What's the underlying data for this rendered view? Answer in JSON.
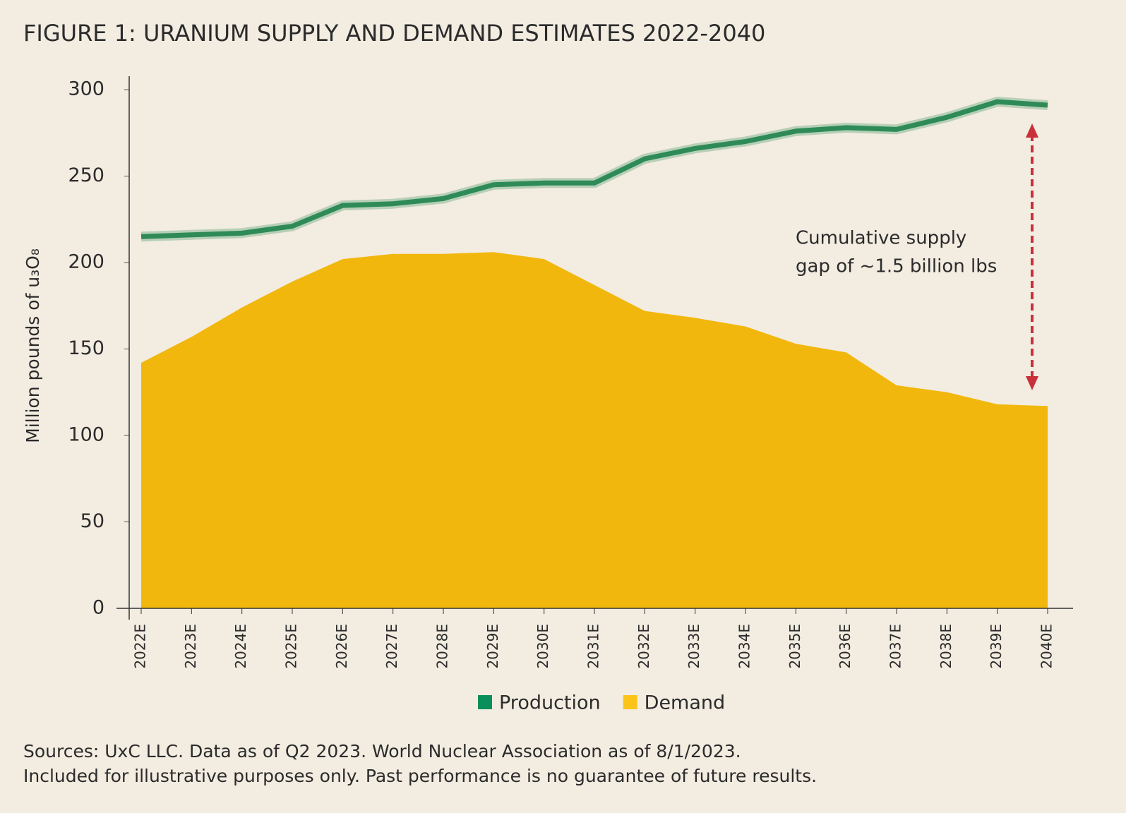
{
  "chart_data": {
    "type": "line-area",
    "title": "FIGURE 1: URANIUM SUPPLY AND DEMAND ESTIMATES 2022-2040",
    "y_label": "Million pounds of u₃O₈",
    "categories": [
      "2022E",
      "2023E",
      "2024E",
      "2025E",
      "2026E",
      "2027E",
      "2028E",
      "2029E",
      "2030E",
      "2031E",
      "2032E",
      "2033E",
      "2034E",
      "2035E",
      "2036E",
      "2037E",
      "2038E",
      "2039E",
      "2040E"
    ],
    "series": [
      {
        "name": "Production",
        "color": "#2e8b57",
        "legend_color": "#0a8f5a",
        "style": "line",
        "values": [
          215,
          216,
          217,
          221,
          233,
          234,
          237,
          245,
          246,
          246,
          260,
          266,
          270,
          276,
          278,
          277,
          284,
          293,
          291
        ]
      },
      {
        "name": "Demand",
        "color": "#f1b70c",
        "legend_color": "#fcc419",
        "style": "area",
        "values": [
          142,
          157,
          174,
          189,
          202,
          205,
          205,
          206,
          202,
          187,
          172,
          168,
          163,
          153,
          148,
          129,
          125,
          118,
          117
        ]
      }
    ],
    "ylim": [
      0,
      300
    ],
    "yticks": [
      0,
      50,
      100,
      150,
      200,
      250,
      300
    ],
    "annotation": [
      "Cumulative supply",
      "gap of ~1.5 billion lbs"
    ],
    "sources": [
      "Sources: UxC LLC. Data as of Q2 2023. World Nuclear Association as of 8/1/2023.",
      "Included for illustrative purposes only. Past performance is no guarantee of future results."
    ]
  }
}
